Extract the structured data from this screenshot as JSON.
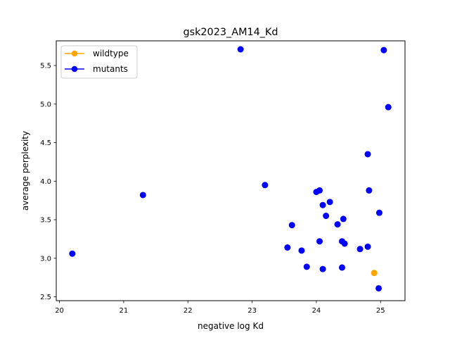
{
  "chart_data": {
    "type": "scatter",
    "title": "gsk2023_AM14_Kd",
    "xlabel": "negative log Kd",
    "ylabel": "average perplexity",
    "xlim": [
      19.95,
      25.38
    ],
    "ylim": [
      2.45,
      5.82
    ],
    "xticks": [
      20,
      21,
      22,
      23,
      24,
      25
    ],
    "yticks": [
      2.5,
      3.0,
      3.5,
      4.0,
      4.5,
      5.0,
      5.5
    ],
    "xtick_labels": [
      "20",
      "21",
      "22",
      "23",
      "24",
      "25"
    ],
    "ytick_labels": [
      "2.5",
      "3.0",
      "3.5",
      "4.0",
      "4.5",
      "5.0",
      "5.5"
    ],
    "grid": false,
    "legend_position": "top-left",
    "series": [
      {
        "name": "wildtype",
        "color": "#ffa500",
        "points": [
          [
            24.9,
            2.81
          ]
        ]
      },
      {
        "name": "mutants",
        "color": "#0000ff",
        "points": [
          [
            20.2,
            3.06
          ],
          [
            21.3,
            3.82
          ],
          [
            22.82,
            5.71
          ],
          [
            23.2,
            3.95
          ],
          [
            23.55,
            3.14
          ],
          [
            23.62,
            3.43
          ],
          [
            23.77,
            3.1
          ],
          [
            23.85,
            2.89
          ],
          [
            24.0,
            3.86
          ],
          [
            24.05,
            3.88
          ],
          [
            24.05,
            3.22
          ],
          [
            24.1,
            3.69
          ],
          [
            24.1,
            2.86
          ],
          [
            24.15,
            3.55
          ],
          [
            24.21,
            3.73
          ],
          [
            24.33,
            3.44
          ],
          [
            24.4,
            3.22
          ],
          [
            24.4,
            2.88
          ],
          [
            24.42,
            3.51
          ],
          [
            24.44,
            3.19
          ],
          [
            24.68,
            3.12
          ],
          [
            24.8,
            4.35
          ],
          [
            24.8,
            3.15
          ],
          [
            24.82,
            3.88
          ],
          [
            24.97,
            2.61
          ],
          [
            24.98,
            3.59
          ],
          [
            25.05,
            5.7
          ],
          [
            25.12,
            4.96
          ]
        ]
      }
    ]
  }
}
